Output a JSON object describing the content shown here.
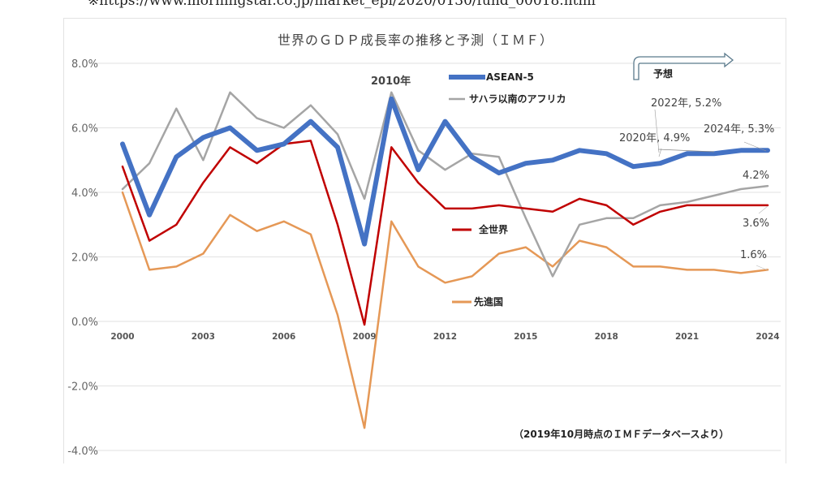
{
  "page": {
    "source_line": "※https://www.morningstar.co.jp/market_epi/2020/0130/fund_00018.html"
  },
  "chart_data": {
    "type": "line",
    "title": "世界のＧＤＰ成長率の推移と予測（ＩＭＦ）",
    "xlabel": "",
    "ylabel": "",
    "x": [
      2000,
      2001,
      2002,
      2003,
      2004,
      2005,
      2006,
      2007,
      2008,
      2009,
      2010,
      2011,
      2012,
      2013,
      2014,
      2015,
      2016,
      2017,
      2018,
      2019,
      2020,
      2021,
      2022,
      2023,
      2024
    ],
    "x_ticks": [
      "2000",
      "2003",
      "2006",
      "2009",
      "2012",
      "2015",
      "2018",
      "2021",
      "2024"
    ],
    "ylim": [
      -4,
      8
    ],
    "y_ticks": [
      "-4.0%",
      "-2.0%",
      "0.0%",
      "2.0%",
      "4.0%",
      "6.0%",
      "8.0%"
    ],
    "y_tick_values": [
      -4,
      -2,
      0,
      2,
      4,
      6,
      8
    ],
    "grid": true,
    "series": [
      {
        "name": "ASEAN-5",
        "color": "#4472c4",
        "values": [
          5.5,
          3.3,
          5.1,
          5.7,
          6.0,
          5.3,
          5.5,
          6.2,
          5.4,
          2.4,
          6.9,
          4.7,
          6.2,
          5.1,
          4.6,
          4.9,
          5.0,
          5.3,
          5.2,
          4.8,
          4.9,
          5.2,
          5.2,
          5.3,
          5.3
        ]
      },
      {
        "name": "サハラ以南のアフリカ",
        "color": "#a5a5a5",
        "values": [
          4.1,
          4.9,
          6.6,
          5.0,
          7.1,
          6.3,
          6.0,
          6.7,
          5.8,
          3.8,
          7.1,
          5.3,
          4.7,
          5.2,
          5.1,
          3.2,
          1.4,
          3.0,
          3.2,
          3.2,
          3.6,
          3.7,
          3.9,
          4.1,
          4.2
        ]
      },
      {
        "name": "全世界",
        "color": "#c00000",
        "values": [
          4.8,
          2.5,
          3.0,
          4.3,
          5.4,
          4.9,
          5.5,
          5.6,
          3.0,
          -0.1,
          5.4,
          4.3,
          3.5,
          3.5,
          3.6,
          3.5,
          3.4,
          3.8,
          3.6,
          3.0,
          3.4,
          3.6,
          3.6,
          3.6,
          3.6
        ]
      },
      {
        "name": "先進国",
        "color": "#e59856",
        "values": [
          4.0,
          1.6,
          1.7,
          2.1,
          3.3,
          2.8,
          3.1,
          2.7,
          0.2,
          -3.3,
          3.1,
          1.7,
          1.2,
          1.4,
          2.1,
          2.3,
          1.7,
          2.5,
          2.3,
          1.7,
          1.7,
          1.6,
          1.6,
          1.5,
          1.6
        ]
      }
    ],
    "annotations": {
      "peak_2010": "2010年",
      "asean_2020": "2020年, 4.9%",
      "asean_2022": "2022年, 5.2%",
      "asean_2024": "2024年, 5.3%",
      "ssa_2024": "4.2%",
      "world_2024": "3.6%",
      "adv_2024": "1.6%",
      "forecast_label": "予想",
      "source_note": "（2019年10月時点のＩＭＦデータベースより）"
    },
    "legend_placement": "inline"
  }
}
